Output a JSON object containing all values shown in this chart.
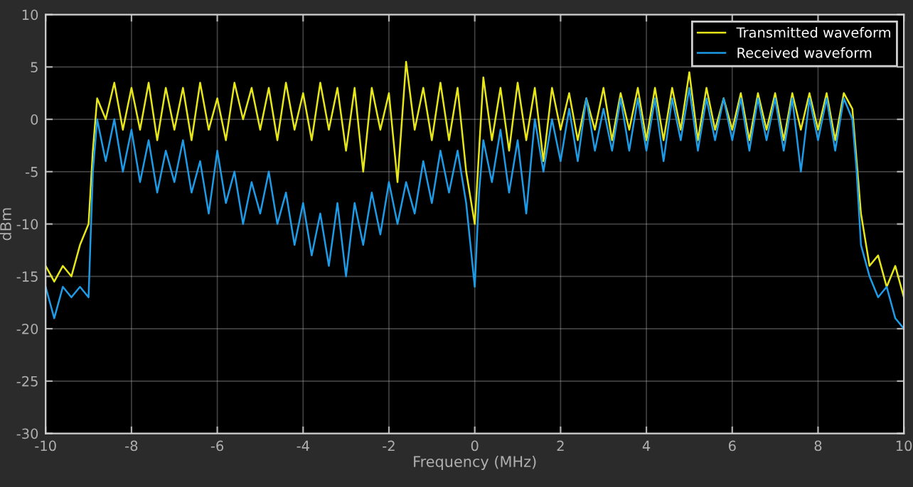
{
  "chart_data": {
    "type": "line",
    "xlabel": "Frequency (MHz)",
    "ylabel": "dBm",
    "x": [
      -10,
      -9.8,
      -9.6,
      -9.4,
      -9.2,
      -9,
      -8.9,
      -8.8,
      -8.6,
      -8.4,
      -8.2,
      -8,
      -7.8,
      -7.6,
      -7.4,
      -7.2,
      -7,
      -6.8,
      -6.6,
      -6.4,
      -6.2,
      -6,
      -5.8,
      -5.6,
      -5.4,
      -5.2,
      -5,
      -4.8,
      -4.6,
      -4.4,
      -4.2,
      -4,
      -3.8,
      -3.6,
      -3.4,
      -3.2,
      -3,
      -2.8,
      -2.6,
      -2.4,
      -2.2,
      -2,
      -1.8,
      -1.6,
      -1.4,
      -1.2,
      -1,
      -0.8,
      -0.6,
      -0.4,
      -0.2,
      0,
      0.1,
      0.2,
      0.4,
      0.6,
      0.8,
      1,
      1.2,
      1.4,
      1.6,
      1.8,
      2,
      2.2,
      2.4,
      2.6,
      2.8,
      3,
      3.2,
      3.4,
      3.6,
      3.8,
      4,
      4.2,
      4.4,
      4.6,
      4.8,
      5,
      5.2,
      5.4,
      5.6,
      5.8,
      6,
      6.2,
      6.4,
      6.6,
      6.8,
      7,
      7.2,
      7.4,
      7.6,
      7.8,
      8,
      8.2,
      8.4,
      8.6,
      8.8,
      8.9,
      9,
      9.2,
      9.4,
      9.6,
      9.8,
      10
    ],
    "series": [
      {
        "name": "Transmitted waveform",
        "color": "#e6e619",
        "values": [
          -14,
          -15.5,
          -14,
          -15,
          -12,
          -10,
          -3,
          2,
          0,
          3.5,
          -1,
          3,
          -1,
          3.5,
          -2,
          3,
          -1,
          3,
          -2,
          3.5,
          -1,
          2,
          -2,
          3.5,
          0,
          3,
          -1,
          3,
          -2,
          3.5,
          -1,
          2.5,
          -2,
          3.5,
          -1,
          3,
          -3,
          3,
          -5,
          3,
          -1,
          2.5,
          -6,
          5.5,
          -1,
          3,
          -2,
          3.5,
          -2,
          3,
          -5,
          -10,
          -3,
          4,
          -2,
          3,
          -3,
          3.5,
          -2,
          3,
          -4,
          3,
          -1,
          2.5,
          -2,
          2,
          -1,
          3,
          -2,
          2.5,
          -1,
          3,
          -2,
          3,
          -2,
          3,
          -1,
          4.5,
          -2,
          3,
          -1,
          2,
          -1,
          2.5,
          -2,
          2.5,
          -1,
          2.5,
          -2,
          2.5,
          -1,
          2.5,
          -1,
          2.5,
          -2,
          2.5,
          1,
          -4,
          -9,
          -14,
          -13,
          -16,
          -14,
          -17
        ]
      },
      {
        "name": "Received waveform",
        "color": "#1e9be6",
        "values": [
          -16,
          -19,
          -16,
          -17,
          -16,
          -17,
          -5,
          0,
          -4,
          0,
          -5,
          -1,
          -6,
          -2,
          -7,
          -3,
          -6,
          -2,
          -7,
          -4,
          -9,
          -3,
          -8,
          -5,
          -10,
          -6,
          -9,
          -5,
          -10,
          -7,
          -12,
          -8,
          -13,
          -9,
          -14,
          -8,
          -15,
          -8,
          -12,
          -7,
          -11,
          -6,
          -10,
          -6,
          -9,
          -4,
          -8,
          -3,
          -7,
          -3,
          -8,
          -16,
          -7,
          -2,
          -6,
          -1,
          -7,
          -2,
          -9,
          0,
          -5,
          0,
          -4,
          1,
          -4,
          2,
          -3,
          1,
          -3,
          2,
          -3,
          2,
          -3,
          2,
          -4,
          2,
          -2,
          3,
          -3,
          2,
          -2,
          2,
          -2,
          2,
          -3,
          2,
          -2,
          2,
          -3,
          2,
          -5,
          2,
          -2,
          2,
          -3,
          2,
          0,
          -5,
          -12,
          -15,
          -17,
          -16,
          -19,
          -20
        ]
      }
    ],
    "xlim": [
      -10,
      10
    ],
    "xticks": [
      -10,
      -8,
      -6,
      -4,
      -2,
      0,
      2,
      4,
      6,
      8,
      10
    ],
    "ylim": [
      -30,
      10
    ],
    "yticks": [
      -30,
      -25,
      -20,
      -15,
      -10,
      -5,
      0,
      5,
      10
    ],
    "grid": true,
    "legend": "top right",
    "marker": "none",
    "line_style": "solid"
  }
}
